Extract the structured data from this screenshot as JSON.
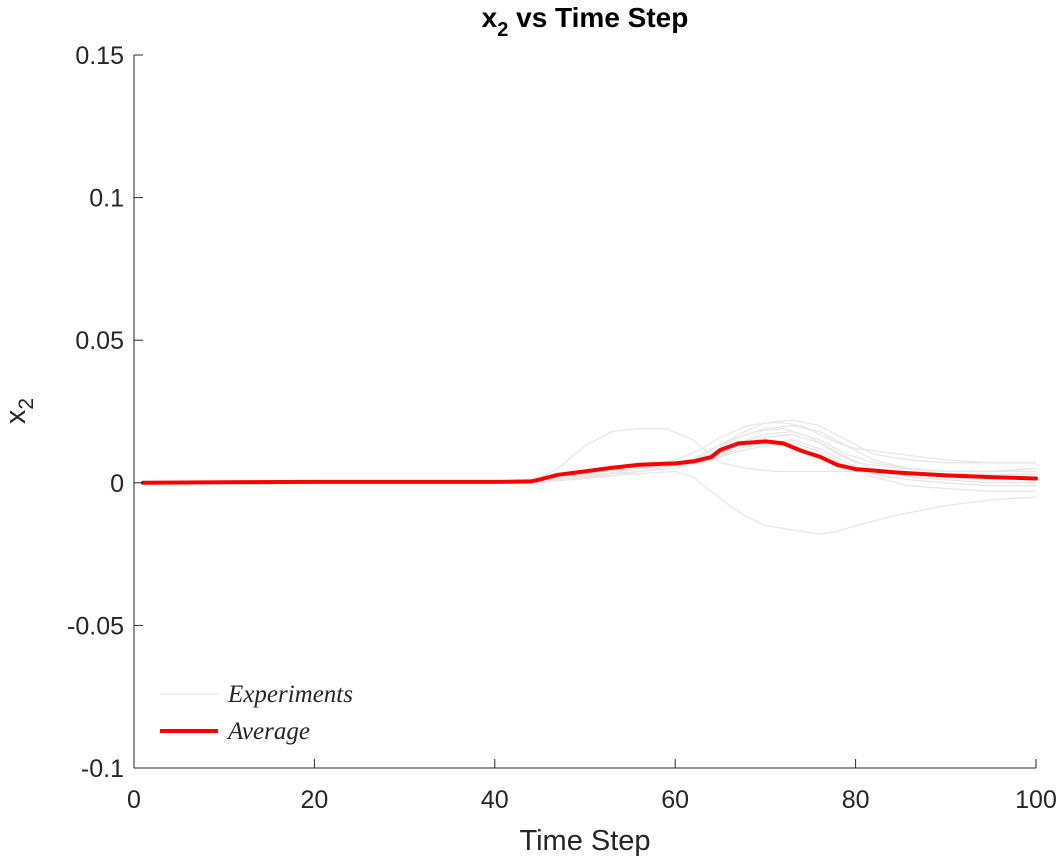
{
  "chart_data": {
    "type": "line",
    "title": {
      "main": "x",
      "sub": "2",
      "rest": " vs Time Step"
    },
    "xlabel": "Time Step",
    "ylabel": {
      "main": "x",
      "sub": "2"
    },
    "xlim": [
      0,
      100
    ],
    "ylim": [
      -0.1,
      0.15
    ],
    "xticks": [
      0,
      20,
      40,
      60,
      80,
      100
    ],
    "xtick_labels": [
      "0",
      "20",
      "40",
      "60",
      "80",
      "100"
    ],
    "yticks": [
      -0.1,
      -0.05,
      0,
      0.05,
      0.1,
      0.15
    ],
    "ytick_labels": [
      "-0.1",
      "-0.05",
      "0",
      "0.05",
      "0.1",
      "0.15"
    ],
    "grid": false,
    "legend": {
      "placement": "bottom-left",
      "entries": [
        {
          "label": "Experiments",
          "color": "#e6e6e6"
        },
        {
          "label": "Average",
          "color": "#ff0000"
        }
      ]
    },
    "colors": {
      "experiments": "#e6e6e6",
      "average": "#ff0000",
      "axis": "#262626"
    },
    "experiments": [
      {
        "x": [
          1,
          44,
          47,
          50,
          53,
          56,
          59,
          62,
          65,
          68,
          71,
          74,
          77,
          80,
          85,
          90,
          95,
          100
        ],
        "y": [
          0,
          0,
          0.005,
          0.013,
          0.018,
          0.019,
          0.019,
          0.015,
          0.007,
          0.005,
          0.004,
          0.004,
          0.004,
          0.004,
          0.003,
          0.003,
          0.003,
          0.003
        ]
      },
      {
        "x": [
          1,
          44,
          47,
          50,
          55,
          60,
          62,
          64,
          66,
          68,
          70,
          72,
          74,
          76,
          78,
          80,
          85,
          90,
          95,
          100
        ],
        "y": [
          0,
          0,
          0.001,
          0.002,
          0.003,
          0.004,
          0.002,
          -0.003,
          -0.008,
          -0.012,
          -0.015,
          -0.016,
          -0.017,
          -0.018,
          -0.017,
          -0.015,
          -0.011,
          -0.008,
          -0.006,
          -0.005
        ]
      },
      {
        "x": [
          1,
          44,
          48,
          52,
          56,
          60,
          63,
          65,
          68,
          70,
          72,
          74,
          76,
          78,
          80,
          85,
          90,
          95,
          100
        ],
        "y": [
          0,
          0,
          0.002,
          0.004,
          0.006,
          0.008,
          0.012,
          0.016,
          0.02,
          0.021,
          0.021,
          0.02,
          0.017,
          0.014,
          0.012,
          0.01,
          0.008,
          0.007,
          0.007
        ]
      },
      {
        "x": [
          1,
          44,
          48,
          52,
          56,
          60,
          63,
          66,
          69,
          72,
          75,
          78,
          80,
          85,
          90,
          95,
          100
        ],
        "y": [
          0,
          0,
          0.001,
          0.003,
          0.005,
          0.006,
          0.01,
          0.015,
          0.018,
          0.019,
          0.016,
          0.01,
          0.007,
          0.005,
          0.004,
          0.004,
          0.004
        ]
      },
      {
        "x": [
          1,
          44,
          48,
          52,
          56,
          60,
          64,
          67,
          70,
          73,
          76,
          79,
          82,
          86,
          90,
          95,
          100
        ],
        "y": [
          0,
          0,
          0.002,
          0.004,
          0.005,
          0.006,
          0.009,
          0.014,
          0.017,
          0.018,
          0.015,
          0.01,
          0.007,
          0.005,
          0.004,
          0.004,
          0.005
        ]
      },
      {
        "x": [
          1,
          44,
          48,
          52,
          56,
          60,
          64,
          67,
          70,
          73,
          76,
          79,
          82,
          86,
          90,
          95,
          100
        ],
        "y": [
          0,
          0,
          0.002,
          0.004,
          0.006,
          0.007,
          0.01,
          0.016,
          0.019,
          0.02,
          0.018,
          0.013,
          0.008,
          0.005,
          0.004,
          0.004,
          0.005
        ]
      },
      {
        "x": [
          1,
          44,
          48,
          52,
          56,
          60,
          64,
          67,
          70,
          73,
          76,
          79,
          82,
          86,
          90,
          95,
          100
        ],
        "y": [
          0,
          0,
          0.001,
          0.003,
          0.005,
          0.007,
          0.009,
          0.013,
          0.016,
          0.017,
          0.014,
          0.009,
          0.005,
          0.002,
          0.001,
          0,
          0
        ]
      },
      {
        "x": [
          1,
          44,
          48,
          52,
          56,
          60,
          64,
          67,
          70,
          73,
          76,
          79,
          82,
          86,
          90,
          95,
          100
        ],
        "y": [
          0,
          0,
          0.002,
          0.003,
          0.004,
          0.005,
          0.008,
          0.012,
          0.014,
          0.015,
          0.012,
          0.007,
          0.003,
          0.001,
          0,
          -0.001,
          -0.001
        ]
      },
      {
        "x": [
          1,
          44,
          48,
          52,
          56,
          60,
          64,
          67,
          70,
          73,
          76,
          79,
          82,
          86,
          90,
          95,
          100
        ],
        "y": [
          0,
          0,
          0.001,
          0.002,
          0.004,
          0.006,
          0.01,
          0.017,
          0.021,
          0.022,
          0.02,
          0.015,
          0.01,
          0.008,
          0.007,
          0.007,
          0.007
        ]
      },
      {
        "x": [
          1,
          44,
          48,
          52,
          56,
          60,
          64,
          67,
          70,
          73,
          76,
          79,
          82,
          86,
          90,
          95,
          100
        ],
        "y": [
          0,
          0,
          0.001,
          0.003,
          0.005,
          0.006,
          0.008,
          0.011,
          0.013,
          0.014,
          0.011,
          0.006,
          0.002,
          -0.001,
          -0.002,
          -0.003,
          -0.003
        ]
      }
    ],
    "average": {
      "x": [
        1,
        10,
        20,
        30,
        40,
        44,
        45,
        47,
        50,
        53,
        56,
        60,
        62,
        64,
        65,
        67,
        70,
        72,
        74,
        76,
        78,
        80,
        85,
        90,
        95,
        100
      ],
      "y": [
        0,
        0.0002,
        0.0003,
        0.0003,
        0.0003,
        0.0005,
        0.0012,
        0.0028,
        0.004,
        0.0053,
        0.0063,
        0.0068,
        0.0075,
        0.009,
        0.0115,
        0.0138,
        0.0145,
        0.0138,
        0.0112,
        0.0092,
        0.0062,
        0.0048,
        0.0035,
        0.0026,
        0.002,
        0.0015
      ]
    }
  }
}
